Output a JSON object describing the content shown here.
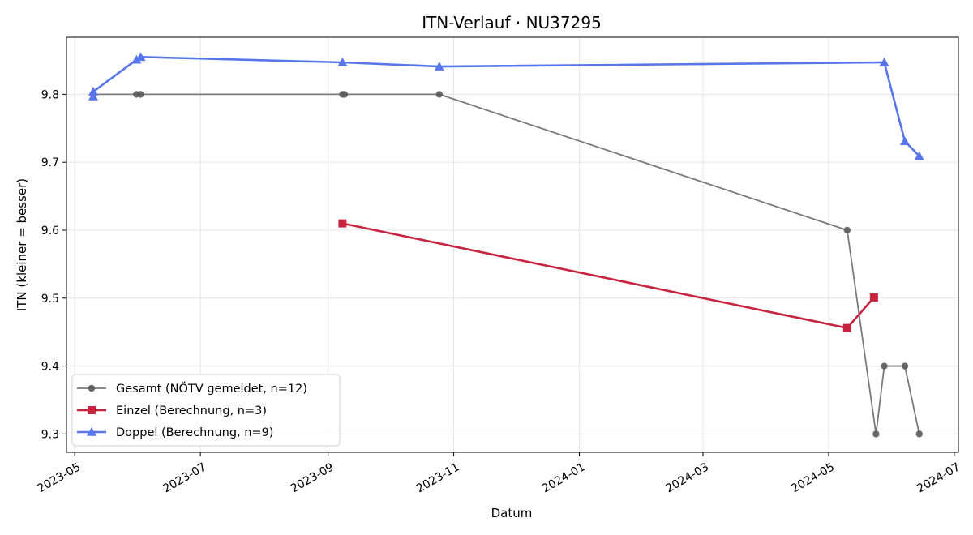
{
  "chart_data": {
    "type": "line",
    "title": "ITN-Verlauf · NU37295",
    "xlabel": "Datum",
    "ylabel": "ITN  (kleiner = besser)",
    "xlim": [
      "2023-04-27",
      "2024-07-03"
    ],
    "ylim": [
      9.273,
      9.884
    ],
    "x_ticks": [
      "2023-05",
      "2023-07",
      "2023-09",
      "2023-11",
      "2024-01",
      "2024-03",
      "2024-05",
      "2024-07"
    ],
    "x_tick_dates": [
      "2023-05-01",
      "2023-07-01",
      "2023-09-01",
      "2023-11-01",
      "2024-01-01",
      "2024-03-01",
      "2024-05-01",
      "2024-07-01"
    ],
    "y_ticks": [
      "9.3",
      "9.4",
      "9.5",
      "9.6",
      "9.7",
      "9.8"
    ],
    "y_tick_values": [
      9.3,
      9.4,
      9.5,
      9.6,
      9.7,
      9.8
    ],
    "grid": true,
    "legend_position": "lower-left",
    "series": [
      {
        "name": "Gesamt (NÖTV gemeldet, n=12)",
        "color": "#7a7a7a",
        "marker": "circle",
        "points": [
          {
            "x": "2023-05-10",
            "y": 9.8
          },
          {
            "x": "2023-05-31",
            "y": 9.8
          },
          {
            "x": "2023-06-02",
            "y": 9.8
          },
          {
            "x": "2023-09-08",
            "y": 9.8
          },
          {
            "x": "2023-09-09",
            "y": 9.8
          },
          {
            "x": "2023-10-25",
            "y": 9.8
          },
          {
            "x": "2024-05-10",
            "y": 9.6
          },
          {
            "x": "2024-05-24",
            "y": 9.3
          },
          {
            "x": "2024-05-28",
            "y": 9.4
          },
          {
            "x": "2024-06-07",
            "y": 9.4
          },
          {
            "x": "2024-06-14",
            "y": 9.3
          }
        ]
      },
      {
        "name": "Einzel (Berechnung, n=3)",
        "color": "#c8243f",
        "marker": "square",
        "points": [
          {
            "x": "2023-09-08",
            "y": 9.61
          },
          {
            "x": "2024-05-10",
            "y": 9.456
          },
          {
            "x": "2024-05-23",
            "y": 9.501
          }
        ]
      },
      {
        "name": "Doppel (Berechnung, n=9)",
        "color": "#5876ea",
        "marker": "triangle",
        "points": [
          {
            "x": "2023-05-10",
            "y": 9.797
          },
          {
            "x": "2023-05-10",
            "y": 9.804
          },
          {
            "x": "2023-05-31",
            "y": 9.851
          },
          {
            "x": "2023-06-02",
            "y": 9.855
          },
          {
            "x": "2023-09-08",
            "y": 9.847
          },
          {
            "x": "2023-10-25",
            "y": 9.841
          },
          {
            "x": "2024-05-28",
            "y": 9.847
          },
          {
            "x": "2024-06-07",
            "y": 9.731
          },
          {
            "x": "2024-06-14",
            "y": 9.709
          }
        ]
      }
    ]
  }
}
